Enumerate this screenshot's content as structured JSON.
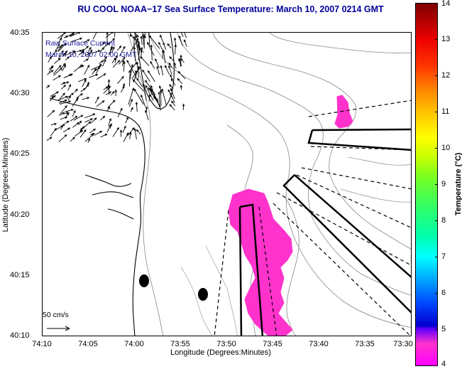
{
  "map": {
    "title": "RU COOL  NOAA−17  Sea Surface Temperature:  March 10, 2007 0214 GMT",
    "x_axis_label": "Longitude (Degrees:Minutes)",
    "y_axis_label": "Latitude (Degrees:Minutes)",
    "x_ticks": [
      "74:10",
      "74:05",
      "74:00",
      "73:55",
      "73:50",
      "73:45",
      "73:40",
      "73:35",
      "73:30"
    ],
    "y_ticks": [
      "40:35",
      "40:30",
      "40:25",
      "40:20",
      "40:15",
      "40:10"
    ],
    "legend_line1": "Raw Surface Current",
    "legend_line2": "March 10, 2007 02:00 GMT",
    "scale_label": "50 cm/s",
    "colorbar_title": "Temperature (°C)",
    "colorbar_ticks": [
      "14",
      "13",
      "12",
      "11",
      "10",
      "9",
      "8",
      "7",
      "6",
      "5",
      "4"
    ],
    "colors": {
      "title": "#00009a",
      "legend_text": "#1a1a9a",
      "sst_patch": "#ff33cc",
      "coastline": "#000000",
      "bathymetry": "#888888",
      "markers": "#000000"
    }
  }
}
